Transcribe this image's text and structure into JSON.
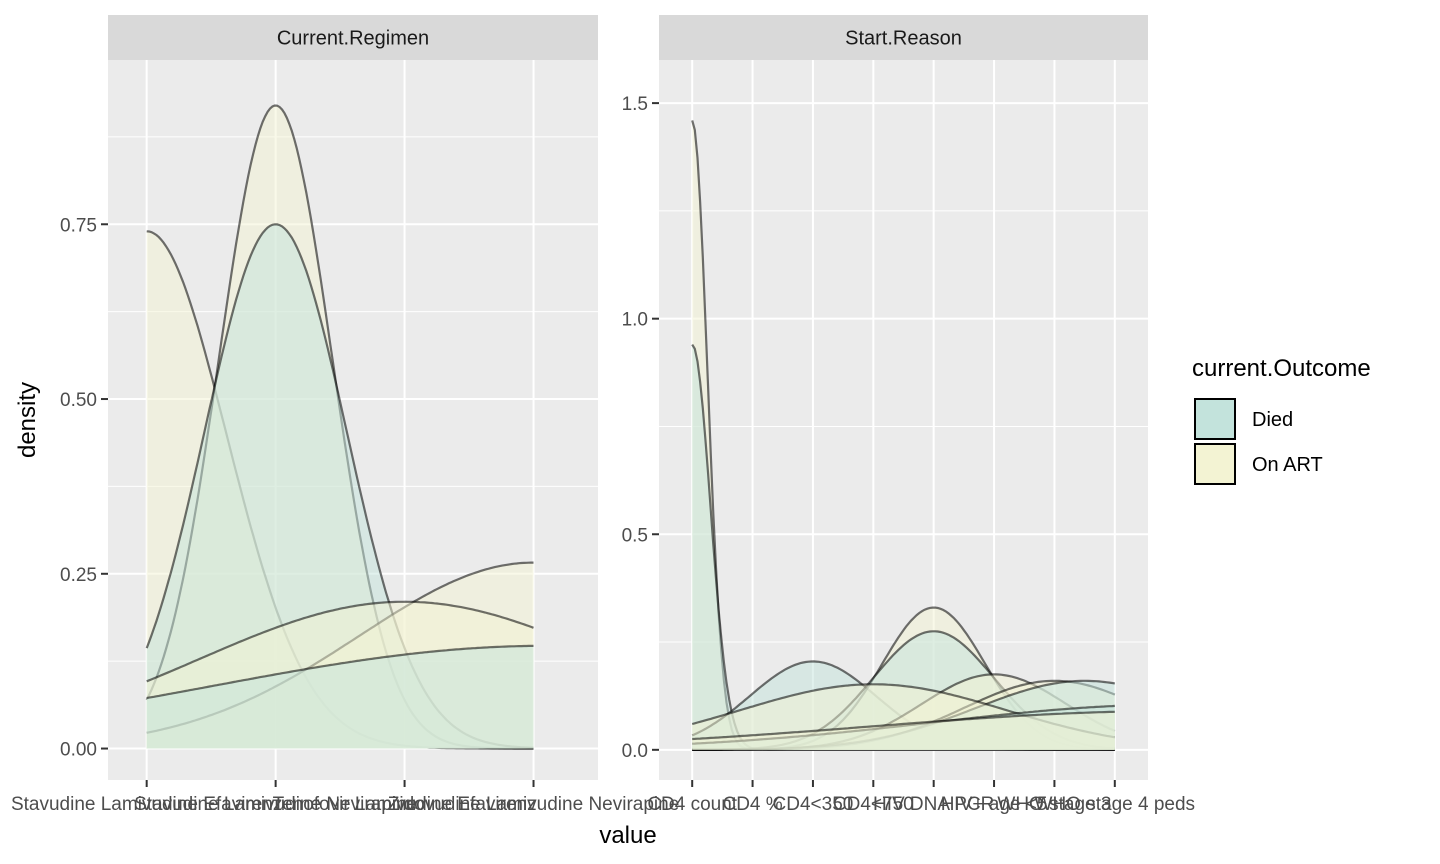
{
  "chart_data": {
    "type": "area",
    "xlabel": "value",
    "ylabel": "density",
    "legend": {
      "title": "current.Outcome",
      "placement": "right",
      "entries": [
        {
          "name": "Died",
          "color": "#c3e3dc"
        },
        {
          "name": "On ART",
          "color": "#f3f3d3"
        }
      ]
    },
    "panels": [
      {
        "title": "Current.Regimen",
        "xlim": [
          0.7,
          4.5
        ],
        "ylim": [
          -0.045,
          0.985
        ],
        "yticks": [
          0.0,
          0.25,
          0.5,
          0.75
        ],
        "ytick_labels": [
          "0.00",
          "0.25",
          "0.50",
          "0.75"
        ],
        "xticks": [
          1,
          2,
          3,
          4
        ],
        "xtick_labels": [
          "Stavudine Lamivudine Efavirenz",
          "Stavudine Lamivudine Nevirapine",
          "Tenofovir Lamivudine Efavirenz",
          "Zidovudine Lamivudine Nevirapine"
        ],
        "xrange": [
          1,
          4
        ],
        "curves": [
          {
            "outcome": "On ART",
            "type": "gauss",
            "mu": 1.0,
            "sigma": 0.62,
            "peak": 0.74
          },
          {
            "outcome": "On ART",
            "type": "gauss",
            "mu": 2.0,
            "sigma": 0.44,
            "peak": 0.92
          },
          {
            "outcome": "Died",
            "type": "gauss",
            "mu": 2.0,
            "sigma": 0.55,
            "peak": 0.75
          },
          {
            "outcome": "On ART",
            "type": "gauss",
            "mu": 4.0,
            "sigma": 1.35,
            "peak": 0.266
          },
          {
            "outcome": "On ART",
            "type": "gauss",
            "mu": 3.0,
            "sigma": 1.6,
            "peak": 0.21
          },
          {
            "outcome": "Died",
            "type": "gauss",
            "mu": 4.1,
            "sigma": 2.6,
            "peak": 0.147
          }
        ]
      },
      {
        "title": "Start.Reason",
        "xlim": [
          0.45,
          8.55
        ],
        "ylim": [
          -0.07,
          1.6
        ],
        "yticks": [
          0.0,
          0.5,
          1.0,
          1.5
        ],
        "ytick_labels": [
          "0.0",
          "0.5",
          "1.0",
          "1.5"
        ],
        "xticks": [
          1,
          2,
          3,
          4,
          5,
          6,
          7,
          8
        ],
        "xtick_labels": [
          "CD4 count",
          "CD4 %",
          "CD4<350",
          "CD4<750",
          "HIV DNA PCR",
          "HIV+ age <5",
          "WHO stage 3",
          "WHO stage 4 peds"
        ],
        "xrange": [
          1,
          8
        ],
        "curves": [
          {
            "outcome": "On ART",
            "type": "gauss",
            "mu": 1.0,
            "sigma": 0.25,
            "peak": 1.46
          },
          {
            "outcome": "Died",
            "type": "gauss",
            "mu": 1.0,
            "sigma": 0.3,
            "peak": 0.94
          },
          {
            "outcome": "Died",
            "type": "gauss",
            "mu": 3.0,
            "sigma": 1.05,
            "peak": 0.205
          },
          {
            "outcome": "On ART",
            "type": "gauss",
            "mu": 5.0,
            "sigma": 0.85,
            "peak": 0.33
          },
          {
            "outcome": "Died",
            "type": "gauss",
            "mu": 5.0,
            "sigma": 1.0,
            "peak": 0.275
          },
          {
            "outcome": "On ART",
            "type": "gauss",
            "mu": 6.0,
            "sigma": 1.2,
            "peak": 0.175
          },
          {
            "outcome": "On ART",
            "type": "gauss",
            "mu": 7.0,
            "sigma": 1.5,
            "peak": 0.16
          },
          {
            "outcome": "Died",
            "type": "gauss",
            "mu": 7.5,
            "sigma": 1.8,
            "peak": 0.16
          },
          {
            "outcome": "On ART",
            "type": "gauss",
            "mu": 4.0,
            "sigma": 2.2,
            "peak": 0.152
          },
          {
            "outcome": "Died",
            "type": "gauss",
            "mu": 9.0,
            "sigma": 4.0,
            "peak": 0.105
          },
          {
            "outcome": "On ART",
            "type": "gauss",
            "mu": 9.0,
            "sigma": 5.0,
            "peak": 0.09
          }
        ]
      }
    ]
  }
}
